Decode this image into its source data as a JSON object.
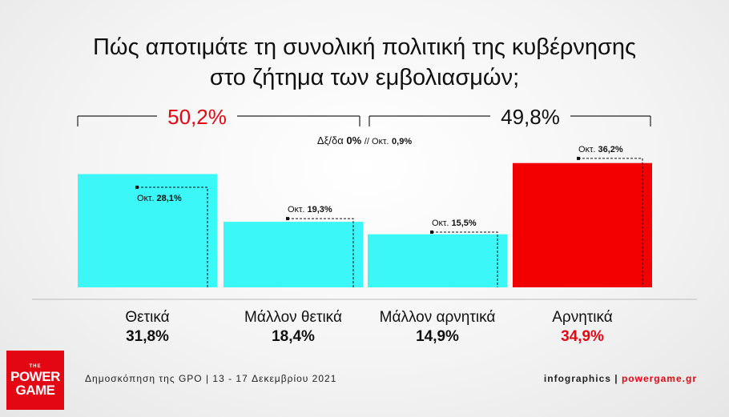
{
  "title_line1": "Πώς αποτιμάτε τη συνολική πολιτική της κυβέρνησης",
  "title_line2": "στο ζήτημα των εμβολιασμών;",
  "group_left_total": "50,2%",
  "group_right_total": "49,8%",
  "dk_label": "Δξ/δα",
  "dk_value": "0%",
  "dk_prev_label": "// Οκτ.",
  "dk_prev_value": "0,9%",
  "prev_prefix": "Οκτ.",
  "footer_source": "Δημοσκόπηση της GPO | 13 - 17 Δεκεμβρίου 2021",
  "footer_credit_prefix": "infographics |",
  "footer_credit_site": "powergame.gr",
  "logo": {
    "the": "THE",
    "word1": "POWER",
    "word2": "GAME"
  },
  "colors": {
    "positive": "#3cf7f7",
    "negative": "#f20000",
    "accent_red": "#e30613"
  },
  "chart_data": {
    "type": "bar",
    "categories": [
      "Θετικά",
      "Μάλλον θετικά",
      "Μάλλον αρνητικά",
      "Αρνητικά"
    ],
    "series": [
      {
        "values": [
          31.8,
          18.4,
          14.9,
          34.9
        ]
      },
      {
        "name": "Οκτ.",
        "values": [
          28.1,
          19.3,
          15.5,
          36.2
        ]
      }
    ],
    "value_labels": [
      "31,8%",
      "18,4%",
      "14,9%",
      "34,9%"
    ],
    "prev_labels": [
      "28,1%",
      "19,3%",
      "15,5%",
      "36,2%"
    ],
    "bar_colors": [
      "#3cf7f7",
      "#3cf7f7",
      "#3cf7f7",
      "#f20000"
    ],
    "ylim": [
      0,
      40
    ]
  }
}
